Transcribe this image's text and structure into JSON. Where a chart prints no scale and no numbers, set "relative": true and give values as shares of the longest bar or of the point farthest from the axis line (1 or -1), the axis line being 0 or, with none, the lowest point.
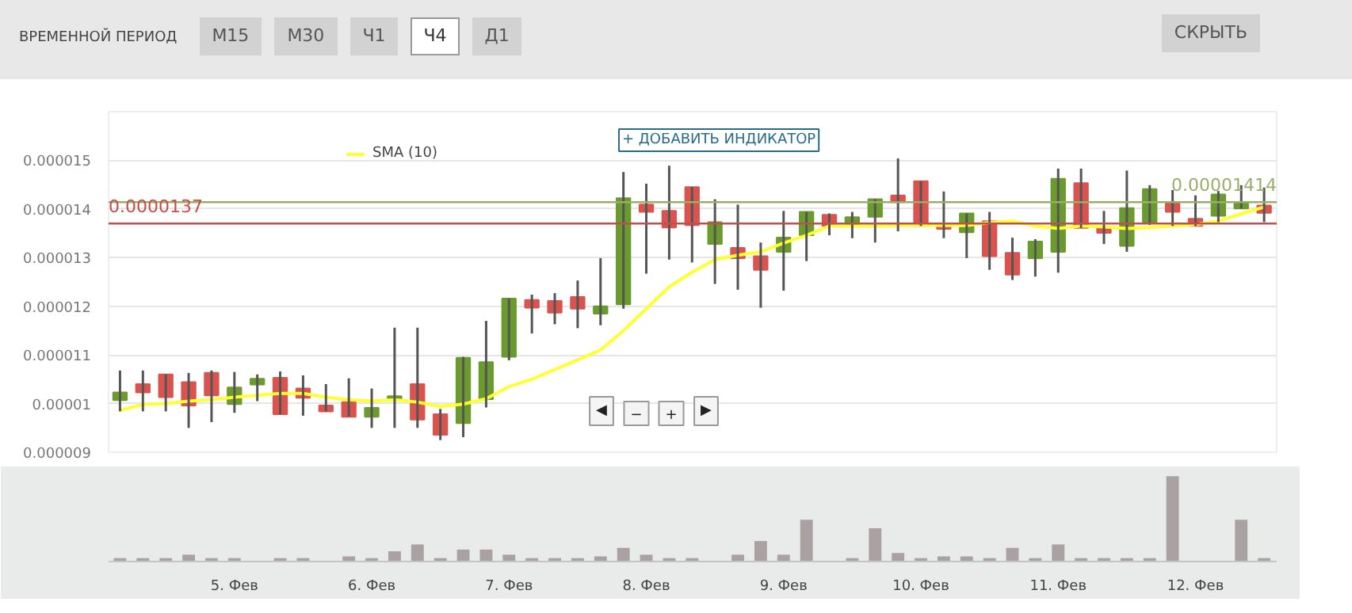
{
  "chart_data": [
    {
      "type": "candlestick",
      "annotations": [
        "ВРЕМЕННОЙ ПЕРИОД",
        "М15",
        "М30",
        "Ч1",
        "Ч4",
        "Д1",
        "СКРЫТЬ",
        "+ ДОБАВИТЬ ИНДИКАТОР",
        "◀",
        "−",
        "+",
        "▶"
      ],
      "categories": [
        null,
        null,
        null,
        null,
        null,
        null,
        null,
        null,
        null,
        null,
        null,
        null,
        null,
        null,
        null,
        null,
        null,
        null,
        null,
        null,
        null,
        null,
        null,
        null,
        null,
        null,
        null,
        null,
        null,
        null,
        null,
        null,
        null,
        null,
        null,
        null,
        null,
        null,
        null,
        null,
        null,
        null,
        null,
        null,
        null,
        null,
        null,
        null,
        null,
        null,
        null
      ],
      "ohlc": [
        [
          1.007e-05,
          1.068e-05,
          9.84e-06,
          1.023e-05
        ],
        [
          1.04e-05,
          1.068e-05,
          9.84e-06,
          1.023e-05
        ],
        [
          1.06e-05,
          1.06e-05,
          9.84e-06,
          1.013e-05
        ],
        [
          1.044e-05,
          1.063e-05,
          9.5e-06,
          9.96e-06
        ],
        [
          1.063e-05,
          1.068e-05,
          9.62e-06,
          1.017e-05
        ],
        [
          9.99e-06,
          1.065e-05,
          9.81e-06,
          1.033e-05
        ],
        [
          1.039e-05,
          1.06e-05,
          1.005e-05,
          1.051e-05
        ],
        [
          1.053e-05,
          1.066e-05,
          9.78e-06,
          9.78e-06
        ],
        [
          1.031e-05,
          1.058e-05,
          9.75e-06,
          1.012e-05
        ],
        [
          9.96e-06,
          1.04e-05,
          9.84e-06,
          9.84e-06
        ],
        [
          1.003e-05,
          1.052e-05,
          9.73e-06,
          9.73e-06
        ],
        [
          9.73e-06,
          1.031e-05,
          9.5e-06,
          9.91e-06
        ],
        [
          1.007e-05,
          1.156e-05,
          9.5e-06,
          1.015e-05
        ],
        [
          1.04e-05,
          1.156e-05,
          9.5e-06,
          9.67e-06
        ],
        [
          9.78e-06,
          9.89e-06,
          9.25e-06,
          9.36e-06
        ],
        [
          9.6e-06,
          1.096e-05,
          9.31e-06,
          1.094e-05
        ],
        [
          1.009e-05,
          1.17e-05,
          9.92e-06,
          1.085e-05
        ],
        [
          1.096e-05,
          1.216e-05,
          1.089e-05,
          1.216e-05
        ],
        [
          1.213e-05,
          1.224e-05,
          1.144e-05,
          1.197e-05
        ],
        [
          1.211e-05,
          1.227e-05,
          1.163e-05,
          1.187e-05
        ],
        [
          1.219e-05,
          1.253e-05,
          1.155e-05,
          1.195e-05
        ],
        [
          1.185e-05,
          1.299e-05,
          1.161e-05,
          1.2e-05
        ],
        [
          1.204e-05,
          1.476e-05,
          1.195e-05,
          1.422e-05
        ],
        [
          1.409e-05,
          1.452e-05,
          1.267e-05,
          1.394e-05
        ],
        [
          1.396e-05,
          1.489e-05,
          1.296e-05,
          1.362e-05
        ],
        [
          1.445e-05,
          1.445e-05,
          1.29e-05,
          1.367e-05
        ],
        [
          1.328e-05,
          1.42e-05,
          1.246e-05,
          1.373e-05
        ],
        [
          1.32e-05,
          1.409e-05,
          1.234e-05,
          1.299e-05
        ],
        [
          1.303e-05,
          1.331e-05,
          1.197e-05,
          1.275e-05
        ],
        [
          1.312e-05,
          1.396e-05,
          1.232e-05,
          1.341e-05
        ],
        [
          1.346e-05,
          1.394e-05,
          1.293e-05,
          1.394e-05
        ],
        [
          1.388e-05,
          1.391e-05,
          1.346e-05,
          1.365e-05
        ],
        [
          1.365e-05,
          1.394e-05,
          1.34e-05,
          1.383e-05
        ],
        [
          1.384e-05,
          1.42e-05,
          1.331e-05,
          1.42e-05
        ],
        [
          1.428e-05,
          1.504e-05,
          1.354e-05,
          1.414e-05
        ],
        [
          1.457e-05,
          1.457e-05,
          1.365e-05,
          1.365e-05
        ],
        [
          1.37e-05,
          1.436e-05,
          1.34e-05,
          1.359e-05
        ],
        [
          1.352e-05,
          1.391e-05,
          1.299e-05,
          1.391e-05
        ],
        [
          1.375e-05,
          1.394e-05,
          1.275e-05,
          1.303e-05
        ],
        [
          1.31e-05,
          1.341e-05,
          1.254e-05,
          1.265e-05
        ],
        [
          1.299e-05,
          1.338e-05,
          1.261e-05,
          1.333e-05
        ],
        [
          1.312e-05,
          1.483e-05,
          1.269e-05,
          1.462e-05
        ],
        [
          1.453e-05,
          1.483e-05,
          1.361e-05,
          1.361e-05
        ],
        [
          1.361e-05,
          1.396e-05,
          1.328e-05,
          1.351e-05
        ],
        [
          1.324e-05,
          1.479e-05,
          1.312e-05,
          1.402e-05
        ],
        [
          1.373e-05,
          1.449e-05,
          1.367e-05,
          1.441e-05
        ],
        [
          1.412e-05,
          1.439e-05,
          1.365e-05,
          1.394e-05
        ],
        [
          1.38e-05,
          1.428e-05,
          1.365e-05,
          1.365e-05
        ],
        [
          1.386e-05,
          1.437e-05,
          1.373e-05,
          1.43e-05
        ],
        [
          1.401e-05,
          1.449e-05,
          1.401e-05,
          1.412e-05
        ],
        [
          1.407e-05,
          1.444e-05,
          1.373e-05,
          1.392e-05
        ]
      ],
      "colors": [
        "#6b9a2e",
        "#d9534f",
        "#d9534f",
        "#d9534f",
        "#d9534f",
        "#6b9a2e",
        "#6b9a2e",
        "#d9534f",
        "#d9534f",
        "#d9534f",
        "#d9534f",
        "#6b9a2e",
        "#6b9a2e",
        "#d9534f",
        "#d9534f",
        "#6b9a2e",
        "#6b9a2e",
        "#6b9a2e",
        "#d9534f",
        "#d9534f",
        "#d9534f",
        "#6b9a2e",
        "#6b9a2e",
        "#d9534f",
        "#d9534f",
        "#d9534f",
        "#6b9a2e",
        "#d9534f",
        "#d9534f",
        "#6b9a2e",
        "#6b9a2e",
        "#d9534f",
        "#6b9a2e",
        "#6b9a2e",
        "#d9534f",
        "#d9534f",
        "#d9534f",
        "#6b9a2e",
        "#d9534f",
        "#d9534f",
        "#6b9a2e",
        "#6b9a2e",
        "#d9534f",
        "#d9534f",
        "#6b9a2e",
        "#6b9a2e",
        "#d9534f",
        "#d9534f",
        "#6b9a2e",
        "#6b9a2e",
        "#d9534f"
      ],
      "series": [
        {
          "type": "line",
          "name": "SMA (10)",
          "color": "#ffff33",
          "values": [
            9.86e-06,
            9.98e-06,
            1e-05,
            1.005e-05,
            1.008e-05,
            1.013e-05,
            1.017e-05,
            1.021e-05,
            1.021e-05,
            1.013e-05,
            1.008e-05,
            1.005e-05,
            1.008e-05,
            1.003e-05,
            9.94e-06,
            9.99e-06,
            1.01e-05,
            1.035e-05,
            1.05e-05,
            1.07e-05,
            1.09e-05,
            1.11e-05,
            1.15e-05,
            1.195e-05,
            1.24e-05,
            1.27e-05,
            1.296e-05,
            1.305e-05,
            1.312e-05,
            1.33e-05,
            1.346e-05,
            1.365e-05,
            1.365e-05,
            1.365e-05,
            1.366e-05,
            1.367e-05,
            1.366e-05,
            1.366e-05,
            1.372e-05,
            1.375e-05,
            1.365e-05,
            1.36e-05,
            1.365e-05,
            1.363e-05,
            1.36e-05,
            1.362e-05,
            1.365e-05,
            1.368e-05,
            1.375e-05,
            1.39e-05,
            1.404e-05
          ]
        }
      ],
      "ref_lines": [
        {
          "axis": "y",
          "value": 1.37e-05,
          "label": "0.0000137",
          "color": "#c0504d"
        },
        {
          "axis": "y",
          "value": 1.414e-05,
          "label": "0.00001414",
          "color": "#9aae6a"
        }
      ],
      "ylim": [
        9e-06,
        1.6e-05
      ],
      "yticks": [
        {
          "value": 9e-06,
          "label": "0.000009"
        },
        {
          "value": 1e-05,
          "label": "0.00001"
        },
        {
          "value": 1.1e-05,
          "label": "0.000011"
        },
        {
          "value": 1.2e-05,
          "label": "0.000012"
        },
        {
          "value": 1.3e-05,
          "label": "0.000013"
        },
        {
          "value": 1.4e-05,
          "label": "0.000014"
        },
        {
          "value": 1.5e-05,
          "label": "0.000015"
        }
      ],
      "grid": "y",
      "legend": "top",
      "tick_labels": "y"
    },
    {
      "type": "bar",
      "relative": true,
      "color": "#aaa2a2",
      "categories": [
        null,
        null,
        null,
        null,
        null,
        "5. Фев",
        null,
        null,
        null,
        null,
        null,
        "6. Фев",
        null,
        null,
        null,
        null,
        null,
        "7. Фев",
        null,
        null,
        null,
        null,
        null,
        "8. Фев",
        null,
        null,
        null,
        null,
        null,
        "9. Фев",
        null,
        null,
        null,
        null,
        null,
        "10. Фев",
        null,
        null,
        null,
        null,
        null,
        "11. Фев",
        null,
        null,
        null,
        null,
        null,
        "12. Фев",
        null,
        null,
        null
      ],
      "values": [
        0.04,
        0.04,
        0.04,
        0.08,
        0.04,
        0.04,
        null,
        0.04,
        0.04,
        null,
        0.06,
        0.04,
        0.12,
        0.2,
        0.04,
        0.14,
        0.14,
        0.08,
        0.04,
        0.04,
        0.04,
        0.06,
        0.16,
        0.08,
        0.04,
        0.04,
        null,
        0.08,
        0.24,
        0.08,
        0.49,
        null,
        0.04,
        0.39,
        0.1,
        0.04,
        0.06,
        0.06,
        0.04,
        0.16,
        0.04,
        0.2,
        0.04,
        0.04,
        0.04,
        0.04,
        1,
        null,
        null,
        0.49,
        0.04
      ],
      "tick_labels": "x"
    }
  ]
}
